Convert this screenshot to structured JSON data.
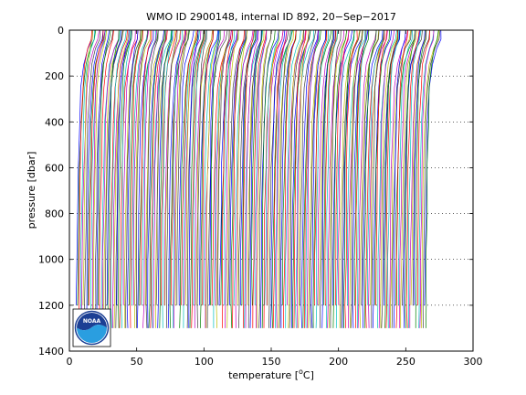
{
  "chart_data": {
    "type": "line",
    "title": "WMO ID 2900148, internal ID 892, 20−Sep−2017",
    "xlabel_pre": "temperature [",
    "xlabel_sup": "o",
    "xlabel_post": "C]",
    "ylabel": "pressure [dbar]",
    "xlim": [
      0,
      300
    ],
    "ylim": [
      1400,
      0
    ],
    "y_reversed": true,
    "x_ticks": [
      0,
      50,
      100,
      150,
      200,
      250,
      300
    ],
    "y_ticks": [
      0,
      200,
      400,
      600,
      800,
      1000,
      1200,
      1400
    ],
    "x_tick_labels": [
      "0",
      "50",
      "100",
      "150",
      "200",
      "250",
      "300"
    ],
    "y_tick_labels": [
      "0",
      "200",
      "400",
      "600",
      "800",
      "1000",
      "1200",
      "1400"
    ],
    "grid": "horizontal dotted",
    "profile_count": 240,
    "profile_offset_start": 5,
    "profile_offset_end": 265,
    "profile_shape": {
      "pressure": [
        0,
        40,
        80,
        150,
        250,
        400,
        600,
        800,
        1000,
        1200,
        1300
      ],
      "temperature": [
        10,
        9.5,
        7,
        4.5,
        3.0,
        2.0,
        1.2,
        0.7,
        0.3,
        0.05,
        0
      ]
    },
    "series_colors": [
      "#0000ff",
      "#008000",
      "#ff0000",
      "#00bfbf",
      "#bf00bf",
      "#bfbf00",
      "#404040"
    ]
  },
  "logo": {
    "label": "NOAA"
  }
}
